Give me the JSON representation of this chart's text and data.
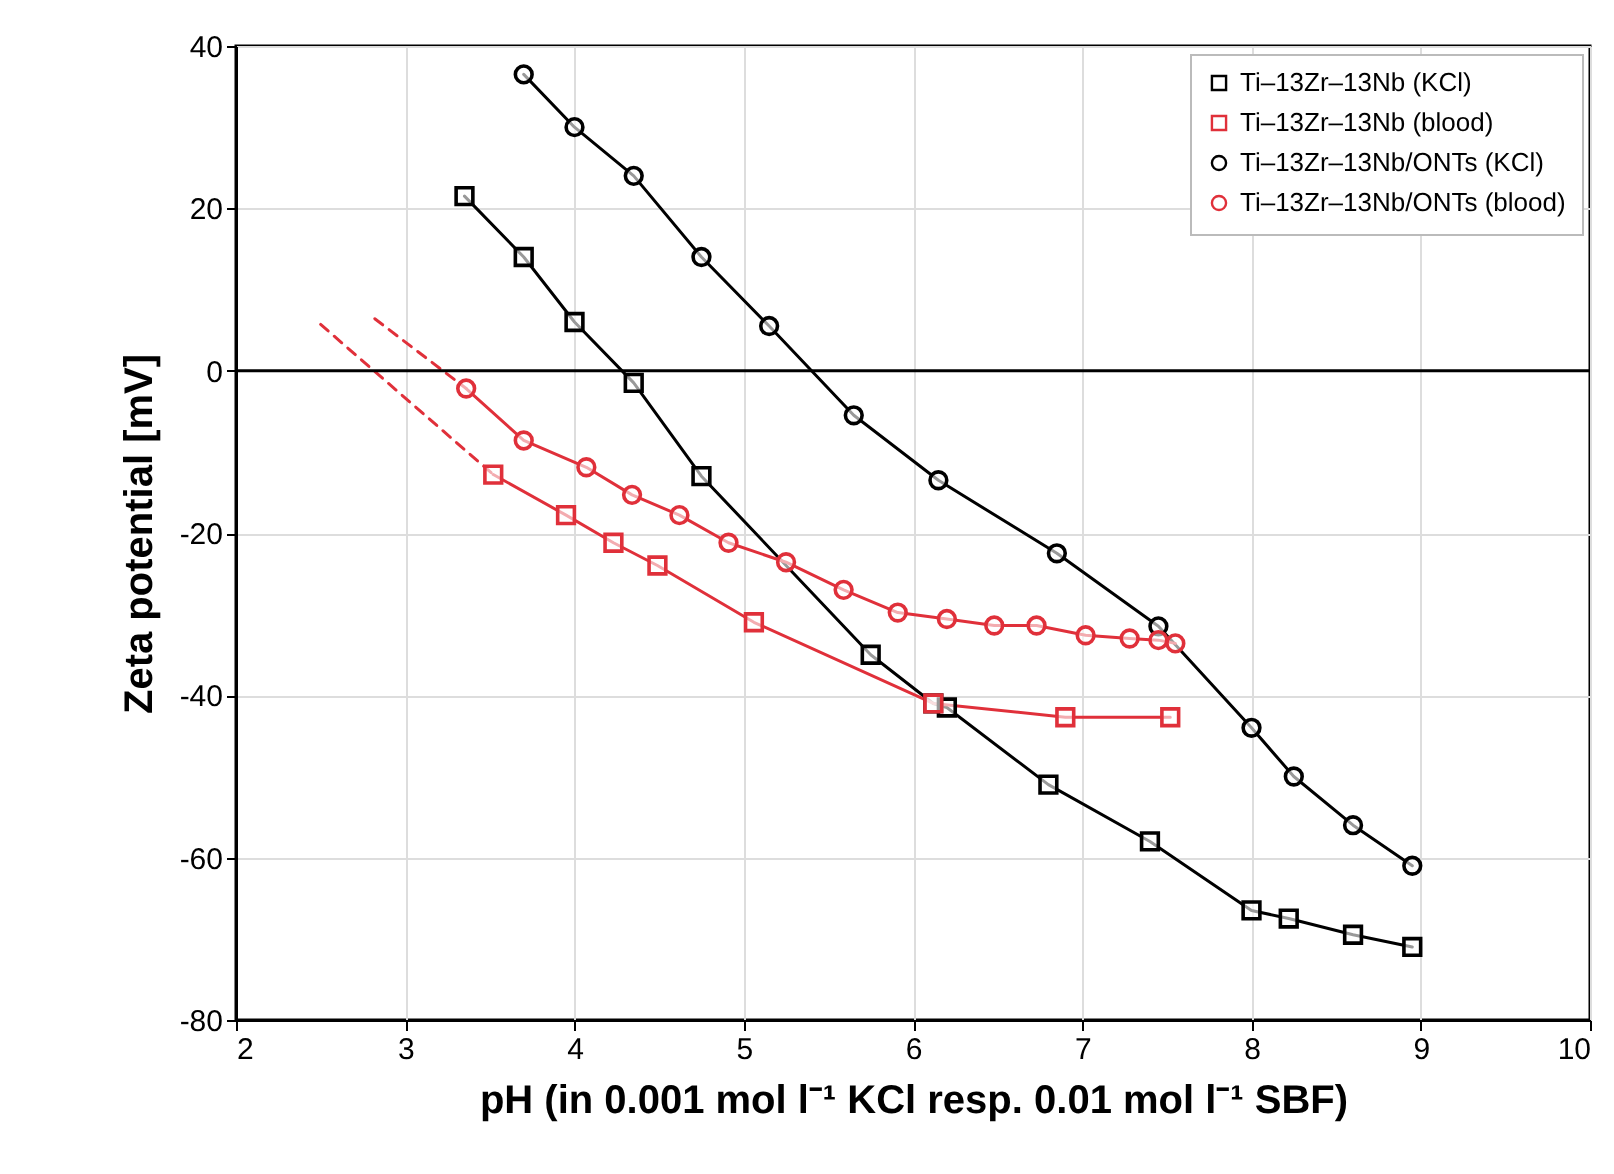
{
  "chart_data": {
    "type": "line",
    "xlabel": "pH (in 0.001 mol l⁻¹ KCl resp. 0.01 mol l⁻¹ SBF)",
    "ylabel": "Zeta potential [mV]",
    "xlim": [
      2,
      10
    ],
    "xticks": [
      2,
      3,
      4,
      5,
      6,
      7,
      8,
      9,
      10
    ],
    "ylim": [
      -80,
      40
    ],
    "yticks": [
      -80,
      -60,
      -40,
      -20,
      0,
      20,
      40
    ],
    "grid": true,
    "legend": "top right",
    "ref_lines": [
      {
        "axis": "y",
        "value": 0,
        "color": "#000000"
      }
    ],
    "series": [
      {
        "name": "Ti–13Zr–13Nb (KCl)",
        "color": "#000000",
        "marker": "square",
        "line_style": "solid",
        "x": [
          3.35,
          3.7,
          4.0,
          4.35,
          4.75,
          5.75,
          6.12,
          6.2,
          6.8,
          7.4,
          8.0,
          8.22,
          8.6,
          8.95
        ],
        "values": [
          21.5,
          14,
          6,
          -1.5,
          -13,
          -35,
          -41,
          -41.5,
          -51,
          -58,
          -66.5,
          -67.5,
          -69.5,
          -71
        ]
      },
      {
        "name": "Ti–13Zr–13Nb (blood)",
        "color": "#e0303a",
        "marker": "square",
        "line_style": "solid",
        "x": [
          3.52,
          3.95,
          4.23,
          4.49,
          5.06,
          6.12,
          6.9,
          7.52
        ],
        "values": [
          -12.8,
          -17.8,
          -21.2,
          -24,
          -31,
          -41,
          -42.7,
          -42.7
        ]
      },
      {
        "name": "Ti–13Zr–13Nb/ONTs (KCl)",
        "color": "#000000",
        "marker": "circle",
        "line_style": "solid",
        "x": [
          3.7,
          4.0,
          4.35,
          4.75,
          5.15,
          5.65,
          6.15,
          6.85,
          7.45,
          8.0,
          8.25,
          8.6,
          8.95
        ],
        "values": [
          36.5,
          30,
          24,
          14,
          5.5,
          -5.5,
          -13.5,
          -22.5,
          -31.5,
          -44,
          -50,
          -56,
          -61
        ]
      },
      {
        "name": "Ti–13Zr–13Nb/ONTs (blood)",
        "color": "#e0303a",
        "marker": "circle",
        "line_style": "solid",
        "x": [
          3.36,
          3.7,
          4.07,
          4.34,
          4.62,
          4.91,
          5.25,
          5.59,
          5.91,
          6.2,
          6.48,
          6.73,
          7.02,
          7.28,
          7.45,
          7.55
        ],
        "values": [
          -2.2,
          -8.6,
          -11.9,
          -15.3,
          -17.8,
          -21.2,
          -23.6,
          -27,
          -29.8,
          -30.6,
          -31.4,
          -31.4,
          -32.6,
          -33,
          -33.2,
          -33.6
        ]
      },
      {
        "type": "line",
        "color": "#e0303a",
        "marker": "none",
        "line_style": "dashed",
        "x": [
          2.5,
          3.52
        ],
        "values": [
          5.7,
          -12.8
        ]
      },
      {
        "type": "line",
        "color": "#e0303a",
        "marker": "none",
        "line_style": "dashed",
        "x": [
          2.82,
          3.36
        ],
        "values": [
          6.4,
          -2.2
        ]
      }
    ]
  }
}
